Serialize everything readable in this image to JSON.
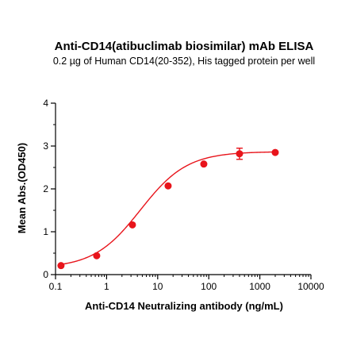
{
  "chart_data": {
    "type": "scatter",
    "title": "Anti-CD14(atibuclimab biosimilar) mAb ELISA",
    "subtitle": "0.2 µg of Human CD14(20-352), His tagged protein per well",
    "xlabel": "Anti-CD14 Neutralizing antibody (ng/mL)",
    "ylabel": "Mean Abs.(OD450)",
    "x_scale": "log",
    "xlim": [
      0.1,
      10000
    ],
    "ylim": [
      0,
      4
    ],
    "x_ticks": [
      0.1,
      1,
      10,
      100,
      1000,
      10000
    ],
    "x_tick_labels": [
      "0.1",
      "1",
      "10",
      "100",
      "1000",
      "10000"
    ],
    "y_ticks": [
      0,
      1,
      2,
      3,
      4
    ],
    "y_tick_labels": [
      "0",
      "1",
      "2",
      "3",
      "4"
    ],
    "grid": false,
    "color": "#e8141b",
    "points": [
      {
        "x": 0.128,
        "y": 0.21,
        "err": 0.02
      },
      {
        "x": 0.64,
        "y": 0.44,
        "err": 0.02
      },
      {
        "x": 3.2,
        "y": 1.16,
        "err": 0.03
      },
      {
        "x": 16,
        "y": 2.07,
        "err": 0.03
      },
      {
        "x": 80,
        "y": 2.58,
        "err": 0.04
      },
      {
        "x": 400,
        "y": 2.82,
        "err": 0.13
      },
      {
        "x": 2000,
        "y": 2.85,
        "err": 0.03
      }
    ],
    "fit_curve": {
      "bottom": 0.15,
      "top": 2.87,
      "ec50": 4.6,
      "hill": 0.95
    }
  }
}
